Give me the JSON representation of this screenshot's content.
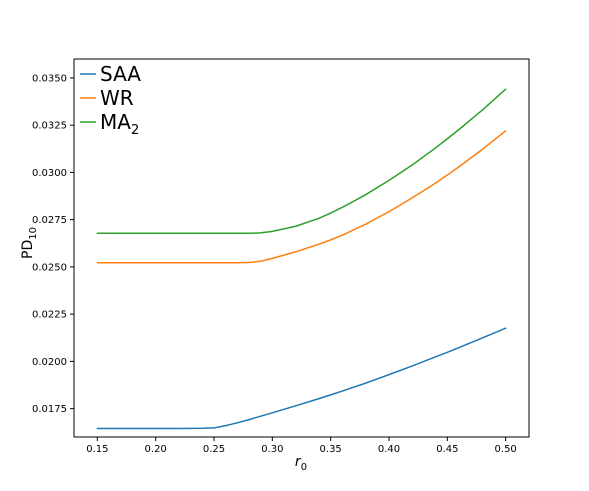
{
  "chart_data": {
    "type": "line",
    "title": "",
    "xlabel": "r",
    "xlabel_sub": "0",
    "ylabel": "PD",
    "ylabel_sub": "10",
    "xlim": [
      0.13,
      0.52
    ],
    "ylim": [
      0.016,
      0.036
    ],
    "xticks": [
      0.15,
      0.2,
      0.25,
      0.3,
      0.35,
      0.4,
      0.45,
      0.5
    ],
    "xtick_labels": [
      "0.15",
      "0.20",
      "0.25",
      "0.30",
      "0.35",
      "0.40",
      "0.45",
      "0.50"
    ],
    "yticks": [
      0.0175,
      0.02,
      0.0225,
      0.025,
      0.0275,
      0.03,
      0.0325,
      0.035
    ],
    "ytick_labels": [
      "0.0175",
      "0.0200",
      "0.0225",
      "0.0250",
      "0.0275",
      "0.0300",
      "0.0325",
      "0.0350"
    ],
    "grid": false,
    "legend_position": "top-left",
    "x": [
      0.15,
      0.2,
      0.22,
      0.24,
      0.25,
      0.26,
      0.27,
      0.28,
      0.29,
      0.3,
      0.32,
      0.34,
      0.35,
      0.36,
      0.38,
      0.4,
      0.42,
      0.44,
      0.45,
      0.46,
      0.48,
      0.5
    ],
    "series": [
      {
        "name": "SAA",
        "sub": "",
        "color": "#1f77b4",
        "values": [
          0.01645,
          0.01645,
          0.01645,
          0.01646,
          0.01648,
          0.0166,
          0.01675,
          0.01692,
          0.0171,
          0.01728,
          0.01765,
          0.01803,
          0.01823,
          0.01843,
          0.01885,
          0.0193,
          0.01976,
          0.02024,
          0.02048,
          0.02073,
          0.02124,
          0.02176
        ]
      },
      {
        "name": "WR",
        "sub": "",
        "color": "#ff7f0e",
        "values": [
          0.02522,
          0.02522,
          0.02522,
          0.02522,
          0.02522,
          0.02522,
          0.02522,
          0.02523,
          0.0253,
          0.02545,
          0.0258,
          0.0262,
          0.02643,
          0.02668,
          0.02726,
          0.02792,
          0.02866,
          0.02944,
          0.02986,
          0.0303,
          0.03122,
          0.0322
        ]
      },
      {
        "name": "MA",
        "sub": "2",
        "color": "#2ca02c",
        "values": [
          0.02678,
          0.02678,
          0.02678,
          0.02678,
          0.02678,
          0.02678,
          0.02678,
          0.02678,
          0.0268,
          0.02688,
          0.02715,
          0.02757,
          0.02785,
          0.02815,
          0.02882,
          0.02958,
          0.0304,
          0.0313,
          0.03178,
          0.03227,
          0.0333,
          0.0344
        ]
      }
    ]
  }
}
